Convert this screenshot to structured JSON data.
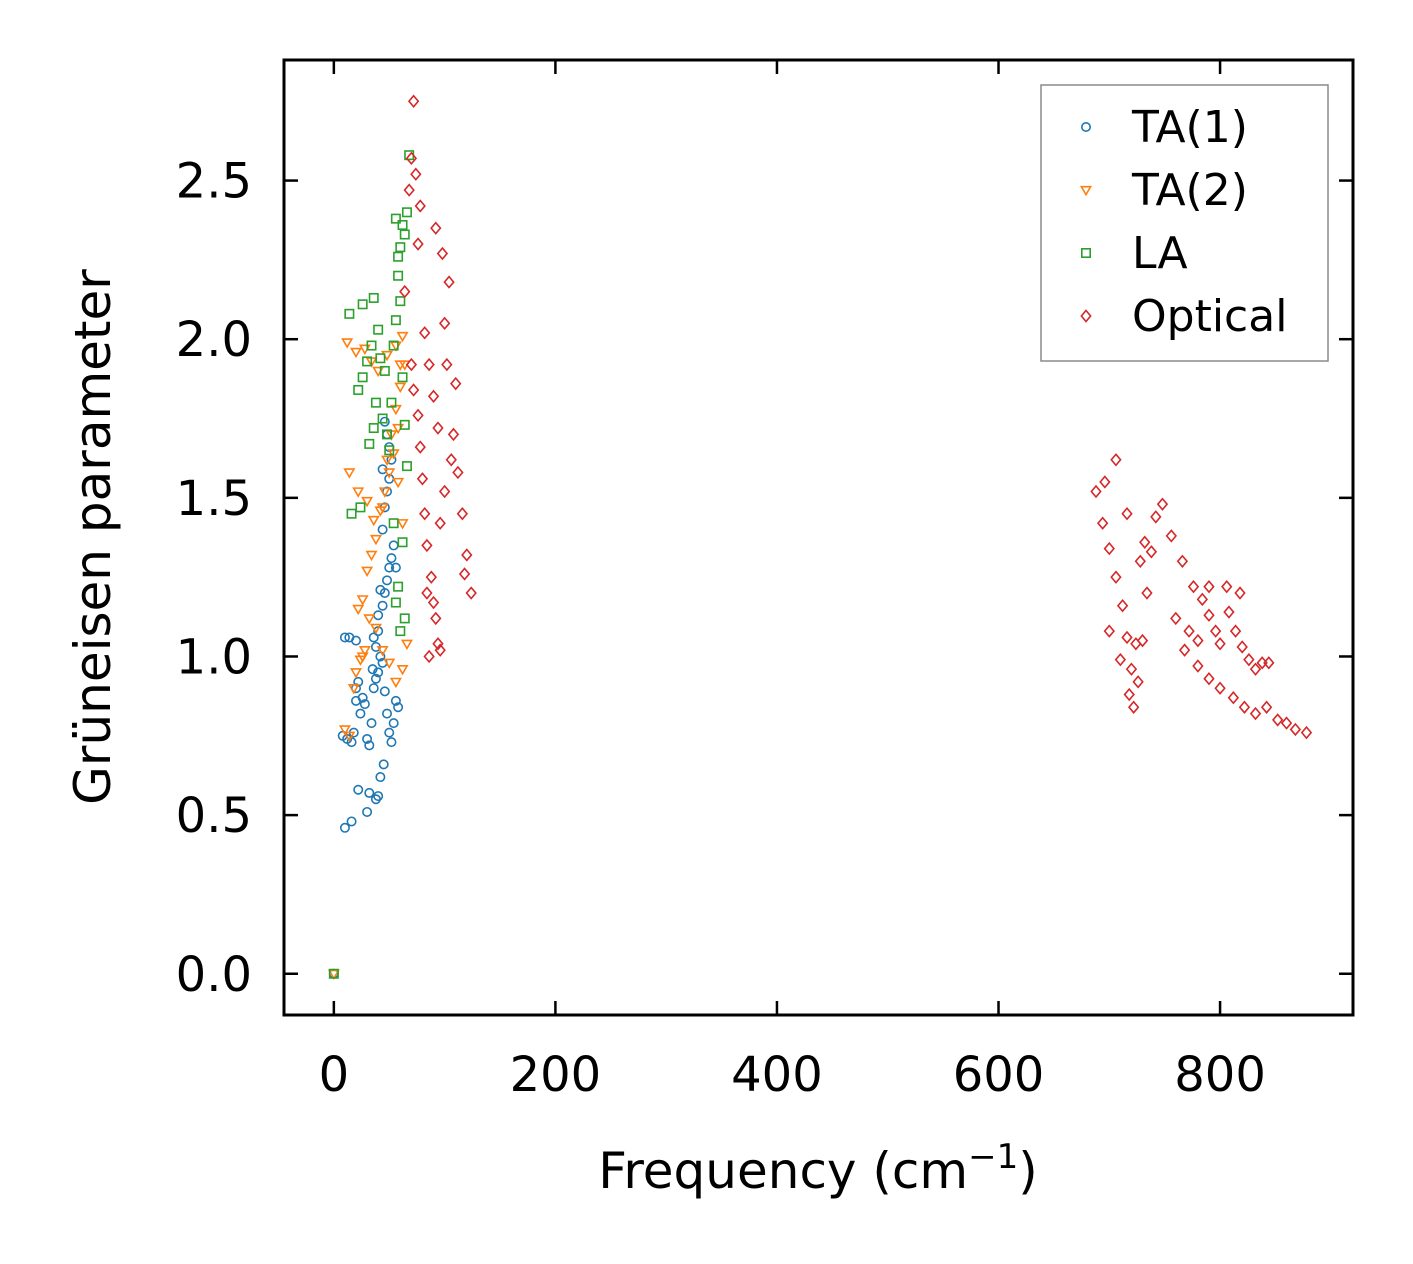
{
  "chart_data": {
    "type": "scatter",
    "xlabel": "Frequency (cm",
    "xlabel_sup": "−1",
    "xlabel_tail": ")",
    "ylabel": "Grüneisen parameter",
    "xlim": [
      -45,
      920
    ],
    "ylim": [
      -0.13,
      2.88
    ],
    "xticks": [
      0,
      200,
      400,
      600,
      800
    ],
    "xtick_labels": [
      "0",
      "200",
      "400",
      "600",
      "800"
    ],
    "yticks": [
      0.0,
      0.5,
      1.0,
      1.5,
      2.0,
      2.5
    ],
    "ytick_labels": [
      "0.0",
      "0.5",
      "1.0",
      "1.5",
      "2.0",
      "2.5"
    ],
    "legend_position": "top-right",
    "colors": {
      "TA1": "#1f77b4",
      "TA2": "#ff7f0e",
      "LA": "#2ca02c",
      "Optical": "#d62728"
    },
    "series": [
      {
        "name": "TA(1)",
        "marker": "circle",
        "color": "#1f77b4",
        "points": [
          [
            0,
            0.0
          ],
          [
            10,
            0.46
          ],
          [
            16,
            0.48
          ],
          [
            22,
            0.58
          ],
          [
            30,
            0.51
          ],
          [
            32,
            0.57
          ],
          [
            38,
            0.55
          ],
          [
            40,
            0.56
          ],
          [
            42,
            0.62
          ],
          [
            45,
            0.66
          ],
          [
            10,
            1.06
          ],
          [
            14,
            1.06
          ],
          [
            20,
            1.05
          ],
          [
            8,
            0.75
          ],
          [
            12,
            0.74
          ],
          [
            16,
            0.73
          ],
          [
            18,
            0.76
          ],
          [
            20,
            0.86
          ],
          [
            20,
            0.9
          ],
          [
            22,
            0.92
          ],
          [
            24,
            0.82
          ],
          [
            26,
            0.87
          ],
          [
            28,
            0.85
          ],
          [
            30,
            0.74
          ],
          [
            32,
            0.72
          ],
          [
            34,
            0.79
          ],
          [
            36,
            0.9
          ],
          [
            38,
            0.93
          ],
          [
            40,
            0.95
          ],
          [
            42,
            1.0
          ],
          [
            44,
            0.98
          ],
          [
            46,
            0.89
          ],
          [
            48,
            0.82
          ],
          [
            50,
            0.76
          ],
          [
            52,
            0.73
          ],
          [
            54,
            0.79
          ],
          [
            56,
            0.86
          ],
          [
            58,
            0.84
          ],
          [
            36,
            1.06
          ],
          [
            40,
            1.08
          ],
          [
            44,
            1.16
          ],
          [
            46,
            1.2
          ],
          [
            48,
            1.24
          ],
          [
            50,
            1.28
          ],
          [
            52,
            1.31
          ],
          [
            54,
            1.35
          ],
          [
            56,
            1.28
          ],
          [
            44,
            1.4
          ],
          [
            46,
            1.47
          ],
          [
            48,
            1.52
          ],
          [
            50,
            1.56
          ],
          [
            52,
            1.62
          ],
          [
            50,
            1.66
          ],
          [
            48,
            1.7
          ],
          [
            46,
            1.74
          ],
          [
            44,
            1.59
          ],
          [
            42,
            1.21
          ],
          [
            40,
            1.13
          ],
          [
            38,
            1.03
          ],
          [
            35,
            0.96
          ]
        ]
      },
      {
        "name": "TA(2)",
        "marker": "triangle-down",
        "color": "#ff7f0e",
        "points": [
          [
            0,
            0.0
          ],
          [
            12,
            1.99
          ],
          [
            20,
            1.96
          ],
          [
            28,
            1.97
          ],
          [
            34,
            1.93
          ],
          [
            40,
            1.9
          ],
          [
            48,
            1.95
          ],
          [
            56,
            1.98
          ],
          [
            62,
            2.01
          ],
          [
            60,
            1.92
          ],
          [
            10,
            0.77
          ],
          [
            14,
            0.75
          ],
          [
            18,
            0.9
          ],
          [
            20,
            0.95
          ],
          [
            24,
            0.99
          ],
          [
            26,
            1.0
          ],
          [
            28,
            1.02
          ],
          [
            22,
            1.15
          ],
          [
            26,
            1.18
          ],
          [
            30,
            1.27
          ],
          [
            34,
            1.32
          ],
          [
            38,
            1.37
          ],
          [
            42,
            1.46
          ],
          [
            46,
            1.52
          ],
          [
            50,
            1.58
          ],
          [
            54,
            1.64
          ],
          [
            58,
            1.72
          ],
          [
            14,
            1.58
          ],
          [
            22,
            1.52
          ],
          [
            30,
            1.49
          ],
          [
            36,
            1.43
          ],
          [
            44,
            1.47
          ],
          [
            48,
            1.62
          ],
          [
            52,
            1.7
          ],
          [
            56,
            1.78
          ],
          [
            60,
            1.85
          ],
          [
            64,
            1.92
          ],
          [
            32,
            1.12
          ],
          [
            38,
            1.09
          ],
          [
            44,
            1.02
          ],
          [
            50,
            0.98
          ],
          [
            56,
            0.92
          ],
          [
            62,
            0.96
          ],
          [
            66,
            1.04
          ],
          [
            62,
            1.42
          ],
          [
            58,
            1.55
          ]
        ]
      },
      {
        "name": "LA",
        "marker": "square",
        "color": "#2ca02c",
        "points": [
          [
            0,
            0.0
          ],
          [
            14,
            2.08
          ],
          [
            26,
            2.11
          ],
          [
            36,
            2.13
          ],
          [
            40,
            2.03
          ],
          [
            22,
            1.84
          ],
          [
            26,
            1.88
          ],
          [
            30,
            1.93
          ],
          [
            34,
            1.98
          ],
          [
            38,
            1.8
          ],
          [
            16,
            1.45
          ],
          [
            24,
            1.47
          ],
          [
            32,
            1.67
          ],
          [
            36,
            1.72
          ],
          [
            44,
            1.75
          ],
          [
            48,
            1.7
          ],
          [
            52,
            1.8
          ],
          [
            54,
            1.98
          ],
          [
            56,
            2.06
          ],
          [
            58,
            2.2
          ],
          [
            60,
            2.29
          ],
          [
            62,
            2.36
          ],
          [
            64,
            2.33
          ],
          [
            66,
            2.4
          ],
          [
            68,
            2.58
          ],
          [
            56,
            2.38
          ],
          [
            58,
            2.26
          ],
          [
            60,
            2.12
          ],
          [
            62,
            1.88
          ],
          [
            64,
            1.73
          ],
          [
            66,
            1.6
          ],
          [
            62,
            1.36
          ],
          [
            58,
            1.22
          ],
          [
            56,
            1.17
          ],
          [
            60,
            1.08
          ],
          [
            64,
            1.12
          ],
          [
            54,
            1.42
          ],
          [
            50,
            1.65
          ],
          [
            46,
            1.9
          ],
          [
            42,
            1.94
          ]
        ]
      },
      {
        "name": "Optical",
        "marker": "diamond",
        "color": "#d62728",
        "points": [
          [
            72,
            2.75
          ],
          [
            70,
            2.57
          ],
          [
            74,
            2.52
          ],
          [
            68,
            2.47
          ],
          [
            78,
            2.42
          ],
          [
            76,
            2.3
          ],
          [
            64,
            2.15
          ],
          [
            92,
            2.35
          ],
          [
            98,
            2.27
          ],
          [
            104,
            2.18
          ],
          [
            70,
            1.92
          ],
          [
            72,
            1.84
          ],
          [
            76,
            1.76
          ],
          [
            78,
            1.66
          ],
          [
            80,
            1.56
          ],
          [
            82,
            1.45
          ],
          [
            84,
            1.35
          ],
          [
            88,
            1.25
          ],
          [
            90,
            1.17
          ],
          [
            92,
            1.12
          ],
          [
            94,
            1.04
          ],
          [
            96,
            1.02
          ],
          [
            86,
            1.0
          ],
          [
            84,
            1.2
          ],
          [
            108,
            1.7
          ],
          [
            112,
            1.58
          ],
          [
            116,
            1.45
          ],
          [
            120,
            1.32
          ],
          [
            124,
            1.2
          ],
          [
            118,
            1.26
          ],
          [
            100,
            2.05
          ],
          [
            102,
            1.92
          ],
          [
            110,
            1.86
          ],
          [
            106,
            1.62
          ],
          [
            100,
            1.52
          ],
          [
            96,
            1.42
          ],
          [
            94,
            1.72
          ],
          [
            90,
            1.82
          ],
          [
            86,
            1.92
          ],
          [
            82,
            2.02
          ],
          [
            716,
            1.45
          ],
          [
            706,
            1.62
          ],
          [
            696,
            1.55
          ],
          [
            688,
            1.52
          ],
          [
            694,
            1.42
          ],
          [
            700,
            1.34
          ],
          [
            706,
            1.25
          ],
          [
            712,
            1.16
          ],
          [
            716,
            1.06
          ],
          [
            720,
            0.96
          ],
          [
            718,
            0.88
          ],
          [
            722,
            0.84
          ],
          [
            726,
            0.92
          ],
          [
            730,
            1.05
          ],
          [
            734,
            1.2
          ],
          [
            738,
            1.33
          ],
          [
            742,
            1.44
          ],
          [
            748,
            1.48
          ],
          [
            732,
            1.36
          ],
          [
            728,
            1.3
          ],
          [
            756,
            1.38
          ],
          [
            766,
            1.3
          ],
          [
            776,
            1.22
          ],
          [
            784,
            1.18
          ],
          [
            790,
            1.13
          ],
          [
            796,
            1.08
          ],
          [
            800,
            1.04
          ],
          [
            808,
            1.14
          ],
          [
            814,
            1.08
          ],
          [
            820,
            1.03
          ],
          [
            826,
            0.99
          ],
          [
            832,
            0.96
          ],
          [
            838,
            0.98
          ],
          [
            844,
            0.98
          ],
          [
            818,
            1.2
          ],
          [
            806,
            1.22
          ],
          [
            790,
            1.22
          ],
          [
            780,
            1.05
          ],
          [
            772,
            1.08
          ],
          [
            780,
            0.97
          ],
          [
            790,
            0.93
          ],
          [
            800,
            0.9
          ],
          [
            812,
            0.87
          ],
          [
            822,
            0.84
          ],
          [
            832,
            0.82
          ],
          [
            842,
            0.84
          ],
          [
            852,
            0.8
          ],
          [
            860,
            0.79
          ],
          [
            868,
            0.77
          ],
          [
            878,
            0.76
          ],
          [
            700,
            1.08
          ],
          [
            710,
            0.99
          ],
          [
            724,
            1.04
          ],
          [
            760,
            1.12
          ],
          [
            768,
            1.02
          ]
        ]
      }
    ]
  }
}
